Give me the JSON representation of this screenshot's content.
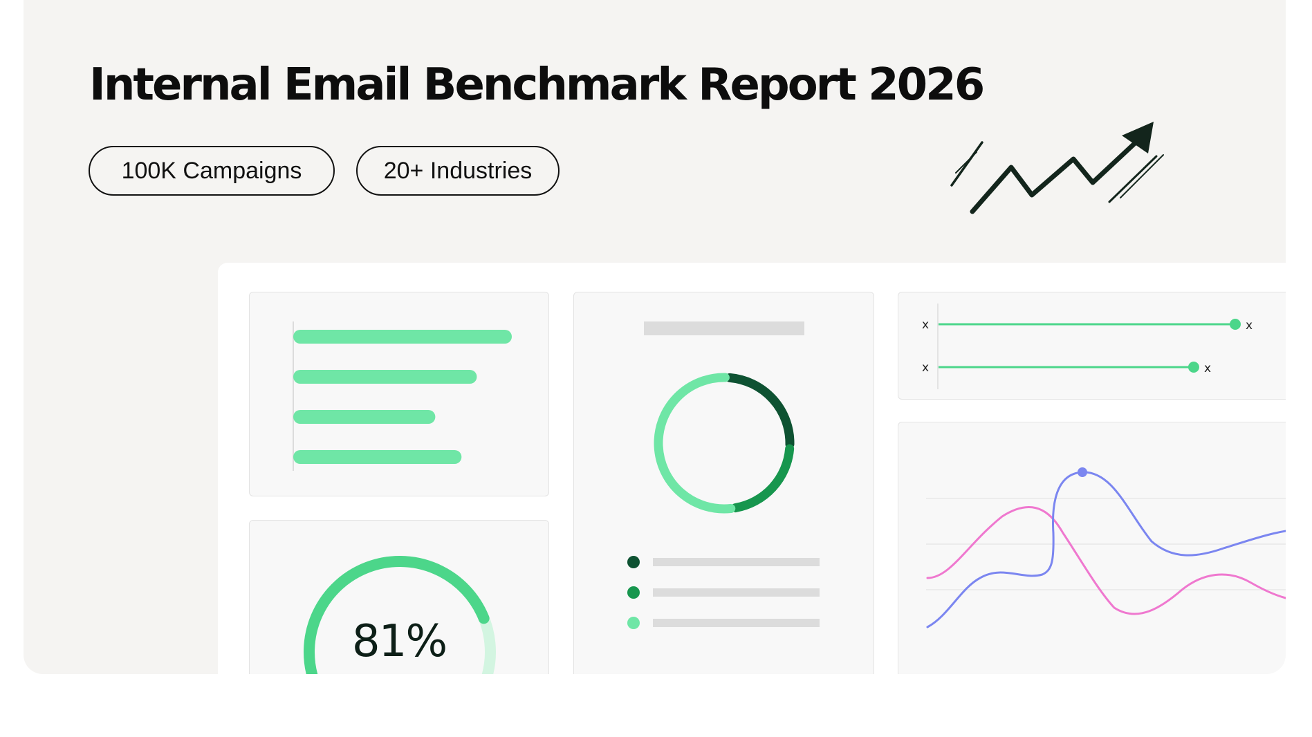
{
  "header": {
    "title": "Internal Email Benchmark Report 2026",
    "badges": [
      "100K Campaigns",
      "20+ Industries"
    ]
  },
  "colors": {
    "background": "#f5f4f2",
    "accent_green": "#6fe6a6",
    "gauge_green": "#4cd68a",
    "dark_green": "#0e5232",
    "mid_green": "#17964e",
    "blue_line": "#7b86f0",
    "pink_line": "#ef78cf"
  },
  "icons": [
    "trend-arrow-icon"
  ],
  "dashboard": {
    "bar_card": {
      "bar_values": [
        1.0,
        0.84,
        0.65,
        0.77
      ]
    },
    "gauge_card": {
      "value_text": "81%",
      "value": 0.81
    },
    "donut_card": {
      "segments": [
        {
          "color": "#0e5232",
          "fraction": 0.25
        },
        {
          "color": "#17964e",
          "fraction": 0.22
        },
        {
          "color": "#6fe6a6",
          "fraction": 0.53
        }
      ],
      "legend_colors": [
        "#0e5232",
        "#17964e",
        "#6fe6a6"
      ]
    },
    "slider_card": {
      "rows": [
        {
          "left_label": "x",
          "right_label": "x",
          "value": 1.0
        },
        {
          "left_label": "x",
          "right_label": "x",
          "value": 0.86
        }
      ]
    },
    "line_card": {
      "series_colors": [
        "#7b86f0",
        "#ef78cf"
      ]
    }
  }
}
